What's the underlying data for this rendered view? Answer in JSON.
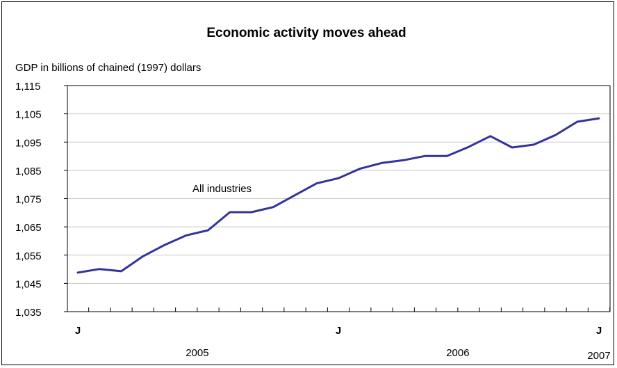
{
  "chart_data": {
    "type": "line",
    "title": "Economic activity moves ahead",
    "ylabel": "GDP in billions of chained (1997) dollars",
    "ylim": [
      1035,
      1115
    ],
    "yticks": [
      "1,115",
      "1,105",
      "1,095",
      "1,085",
      "1,075",
      "1,065",
      "1,055",
      "1,045",
      "1,035"
    ],
    "grid": true,
    "month_labels": [
      {
        "label": "J",
        "month_index": 0
      },
      {
        "label": "J",
        "month_index": 12
      },
      {
        "label": "J",
        "month_index": 24
      }
    ],
    "year_labels": [
      {
        "label": "2005",
        "month_index": 5.5
      },
      {
        "label": "2006",
        "month_index": 17.5
      },
      {
        "label": "2007",
        "month_index": 24
      }
    ],
    "annotation": "All industries",
    "series": [
      {
        "name": "All industries",
        "color": "#333399",
        "values": [
          1048.8,
          1050.1,
          1049.3,
          1054.6,
          1058.6,
          1062.0,
          1063.8,
          1070.2,
          1070.2,
          1072.0,
          1076.2,
          1080.4,
          1082.2,
          1085.6,
          1087.6,
          1088.6,
          1090.1,
          1090.1,
          1093.3,
          1097.1,
          1093.1,
          1094.1,
          1097.5,
          1102.2,
          1103.4
        ]
      }
    ]
  }
}
